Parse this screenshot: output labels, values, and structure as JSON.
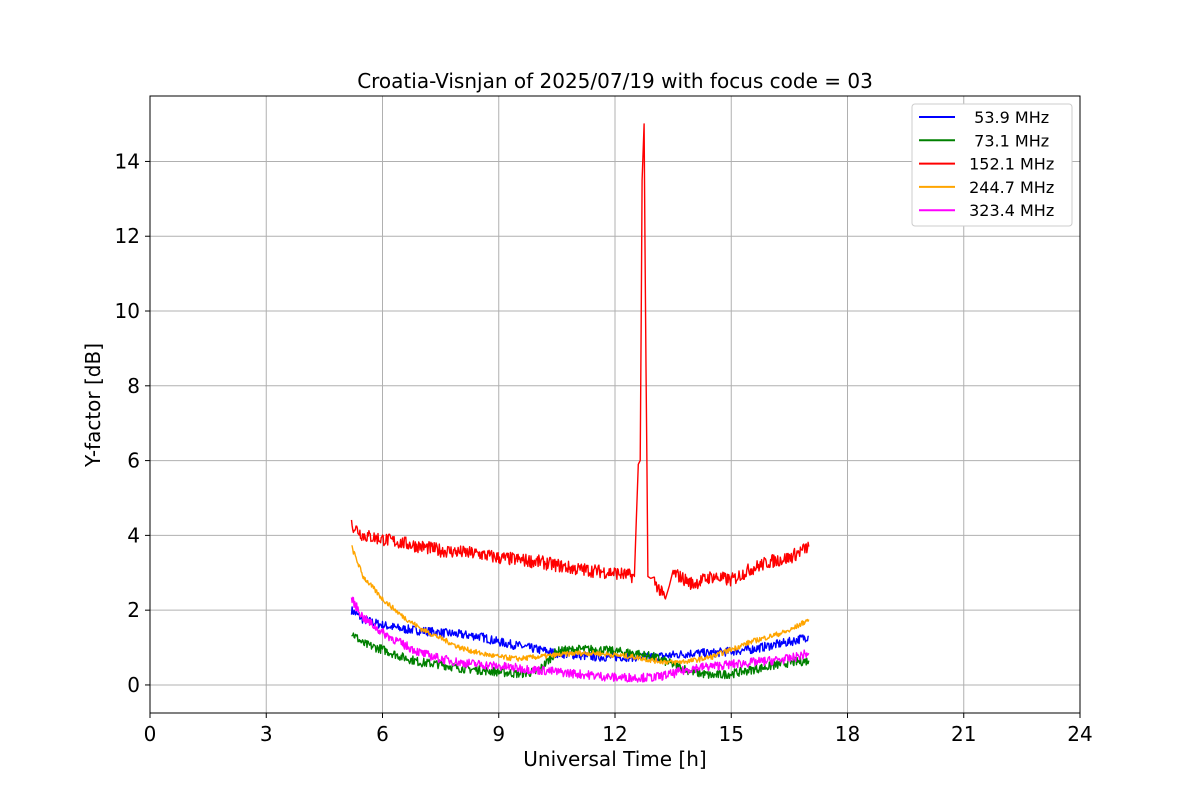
{
  "chart_data": {
    "type": "line",
    "title": "Croatia-Visnjan of 2025/07/19 with focus code = 03",
    "xlabel": "Universal Time [h]",
    "ylabel": "Y-factor [dB]",
    "xlim": [
      0,
      24
    ],
    "ylim": [
      -0.75,
      15.75
    ],
    "xticks": [
      0,
      3,
      6,
      9,
      12,
      15,
      18,
      21,
      24
    ],
    "yticks": [
      0,
      2,
      4,
      6,
      8,
      10,
      12,
      14
    ],
    "grid": true,
    "legend_position": "top-right",
    "series": [
      {
        "name": "  53.9 MHz",
        "color": "#0000ff",
        "x": [
          5.2,
          5.5,
          6,
          6.5,
          7,
          7.5,
          8,
          8.5,
          9,
          9.5,
          10,
          10.5,
          11,
          11.5,
          12,
          12.5,
          13,
          13.5,
          14,
          14.5,
          15,
          15.5,
          16,
          16.5,
          17
        ],
        "y": [
          2.0,
          1.75,
          1.6,
          1.5,
          1.45,
          1.4,
          1.35,
          1.3,
          1.15,
          1.05,
          0.95,
          0.85,
          0.8,
          0.75,
          0.75,
          0.75,
          0.75,
          0.8,
          0.85,
          0.85,
          0.9,
          0.95,
          1.05,
          1.15,
          1.3
        ]
      },
      {
        "name": "  73.1 MHz",
        "color": "#008000",
        "x": [
          5.2,
          5.5,
          6,
          6.5,
          7,
          7.5,
          8,
          8.5,
          9,
          9.5,
          10,
          10.5,
          11,
          11.5,
          12,
          12.5,
          13,
          13.5,
          14,
          14.5,
          15,
          15.5,
          16,
          16.5,
          17
        ],
        "y": [
          1.4,
          1.1,
          0.95,
          0.75,
          0.6,
          0.55,
          0.45,
          0.4,
          0.35,
          0.3,
          0.35,
          0.9,
          0.95,
          0.95,
          0.9,
          0.85,
          0.75,
          0.55,
          0.35,
          0.25,
          0.3,
          0.4,
          0.5,
          0.6,
          0.65
        ]
      },
      {
        "name": " 152.1 MHz",
        "color": "#ff0000",
        "x": [
          5.2,
          5.5,
          6,
          6.5,
          7,
          7.5,
          8,
          8.5,
          9,
          9.5,
          10,
          10.5,
          11,
          11.5,
          12,
          12.5,
          12.6,
          12.65,
          12.7,
          12.75,
          12.8,
          12.85,
          13,
          13.3,
          13.5,
          14,
          14.5,
          15,
          15.5,
          16,
          16.5,
          17
        ],
        "y": [
          4.3,
          4.0,
          3.9,
          3.8,
          3.7,
          3.6,
          3.55,
          3.5,
          3.4,
          3.35,
          3.3,
          3.2,
          3.1,
          3.05,
          3.0,
          2.9,
          5.9,
          6.0,
          13.5,
          15.0,
          8.5,
          2.9,
          2.8,
          2.3,
          3.0,
          2.7,
          2.9,
          2.8,
          3.1,
          3.3,
          3.4,
          3.7
        ]
      },
      {
        "name": " 244.7 MHz",
        "color": "#ffa500",
        "x": [
          5.2,
          5.5,
          6,
          6.5,
          7,
          7.5,
          8,
          8.5,
          9,
          9.5,
          10,
          10.5,
          11,
          11.5,
          12,
          12.5,
          13,
          13.5,
          14,
          14.5,
          15,
          15.5,
          16,
          16.5,
          17
        ],
        "y": [
          3.7,
          2.9,
          2.3,
          1.85,
          1.5,
          1.25,
          1.0,
          0.85,
          0.75,
          0.7,
          0.75,
          0.8,
          0.85,
          0.85,
          0.8,
          0.75,
          0.65,
          0.6,
          0.65,
          0.75,
          0.95,
          1.15,
          1.3,
          1.45,
          1.75
        ]
      },
      {
        "name": " 323.4 MHz",
        "color": "#ff00ff",
        "x": [
          5.2,
          5.5,
          6,
          6.5,
          7,
          7.5,
          8,
          8.5,
          9,
          9.5,
          10,
          10.5,
          11,
          11.5,
          12,
          12.5,
          13,
          13.5,
          14,
          14.5,
          15,
          15.5,
          16,
          16.5,
          17
        ],
        "y": [
          2.3,
          1.8,
          1.4,
          1.1,
          0.85,
          0.7,
          0.6,
          0.55,
          0.5,
          0.45,
          0.4,
          0.35,
          0.3,
          0.25,
          0.2,
          0.2,
          0.2,
          0.3,
          0.45,
          0.5,
          0.55,
          0.6,
          0.65,
          0.7,
          0.85
        ]
      }
    ]
  }
}
